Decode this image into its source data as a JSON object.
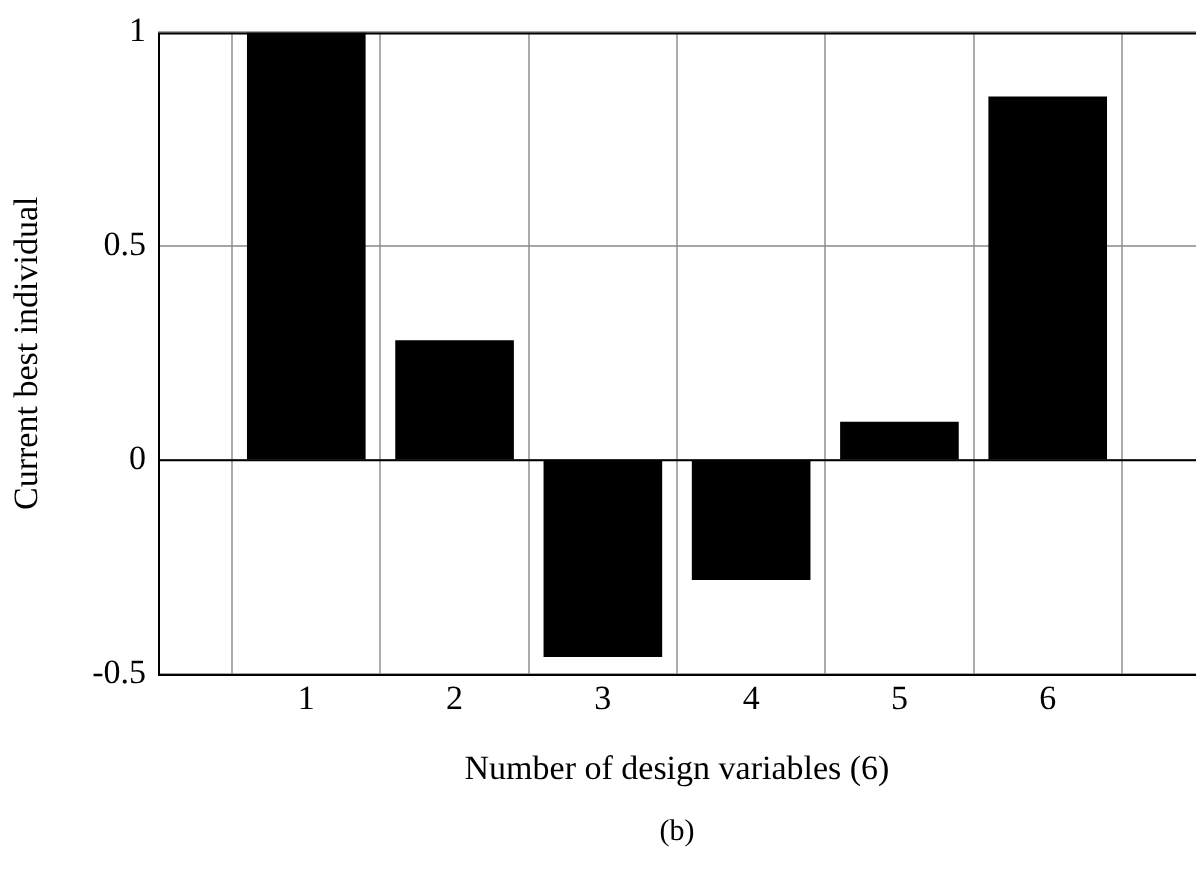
{
  "chart_data": {
    "type": "bar",
    "xlabel": "Number of design variables (6)",
    "ylabel": "Current best individual",
    "x": [
      1,
      2,
      3,
      4,
      5,
      6
    ],
    "values": [
      1,
      0.28,
      -0.46,
      -0.28,
      0.09,
      0.85
    ],
    "color": "#000000",
    "xlim": [
      0,
      7
    ],
    "xticks": [
      1,
      2,
      3,
      4,
      5,
      6
    ],
    "ylim": [
      -0.5,
      1
    ],
    "yticks": [
      -0.5,
      0,
      0.5,
      1
    ],
    "grid": true,
    "annotations": [
      "(b)"
    ]
  }
}
